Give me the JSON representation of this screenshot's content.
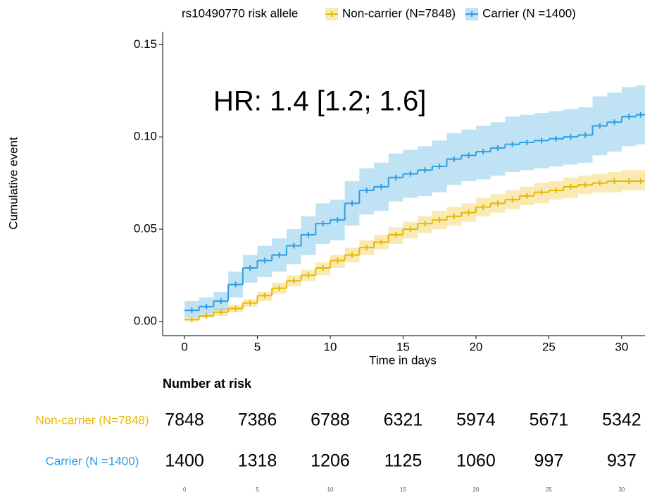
{
  "chart_data": {
    "type": "line",
    "annotation": "HR: 1.4 [1.2; 1.6]",
    "legend_title": "rs10490770 risk allele",
    "xlabel": "Time in days",
    "ylabel": "Cumulative event",
    "xlim": [
      -1.5,
      31.6
    ],
    "ylim": [
      -0.0077,
      0.157
    ],
    "xticks": [
      0,
      5,
      10,
      15,
      20,
      25,
      30
    ],
    "yticks": [
      {
        "value": 0,
        "label": "0.00"
      },
      {
        "value": 0.05,
        "label": "0.05"
      },
      {
        "value": 0.1,
        "label": "0.10"
      },
      {
        "value": 0.15,
        "label": "0.15"
      }
    ],
    "legend": "top",
    "x": [
      0,
      1,
      2,
      3,
      4,
      5,
      6,
      7,
      8,
      9,
      10,
      11,
      12,
      13,
      14,
      15,
      16,
      17,
      18,
      19,
      20,
      21,
      22,
      23,
      24,
      25,
      26,
      27,
      28,
      29,
      30,
      31
    ],
    "series": [
      {
        "name": "Non-carrier (N=7848)",
        "color": "#E7B800",
        "values": [
          0.001,
          0.003,
          0.005,
          0.007,
          0.01,
          0.014,
          0.018,
          0.022,
          0.025,
          0.029,
          0.033,
          0.036,
          0.04,
          0.043,
          0.047,
          0.05,
          0.053,
          0.055,
          0.057,
          0.059,
          0.062,
          0.064,
          0.066,
          0.068,
          0.07,
          0.071,
          0.073,
          0.074,
          0.075,
          0.076,
          0.076,
          0.076
        ],
        "lower": [
          0.0,
          0.002,
          0.003,
          0.005,
          0.008,
          0.011,
          0.015,
          0.019,
          0.022,
          0.025,
          0.029,
          0.032,
          0.036,
          0.039,
          0.042,
          0.045,
          0.048,
          0.05,
          0.052,
          0.054,
          0.057,
          0.059,
          0.061,
          0.063,
          0.064,
          0.066,
          0.067,
          0.069,
          0.07,
          0.07,
          0.071,
          0.071
        ],
        "upper": [
          0.002,
          0.004,
          0.007,
          0.009,
          0.012,
          0.016,
          0.021,
          0.025,
          0.028,
          0.032,
          0.036,
          0.04,
          0.044,
          0.047,
          0.051,
          0.054,
          0.057,
          0.06,
          0.062,
          0.064,
          0.067,
          0.069,
          0.071,
          0.073,
          0.075,
          0.076,
          0.078,
          0.079,
          0.08,
          0.081,
          0.082,
          0.082
        ]
      },
      {
        "name": "Carrier (N =1400)",
        "color": "#2E9FDF",
        "values": [
          0.006,
          0.008,
          0.011,
          0.02,
          0.029,
          0.033,
          0.036,
          0.041,
          0.047,
          0.053,
          0.055,
          0.064,
          0.071,
          0.073,
          0.078,
          0.08,
          0.082,
          0.084,
          0.088,
          0.09,
          0.092,
          0.094,
          0.096,
          0.097,
          0.098,
          0.099,
          0.1,
          0.101,
          0.106,
          0.108,
          0.111,
          0.112
        ],
        "lower": [
          0.002,
          0.004,
          0.006,
          0.013,
          0.021,
          0.024,
          0.027,
          0.031,
          0.036,
          0.042,
          0.044,
          0.052,
          0.058,
          0.06,
          0.065,
          0.067,
          0.068,
          0.07,
          0.074,
          0.076,
          0.077,
          0.079,
          0.081,
          0.082,
          0.083,
          0.084,
          0.085,
          0.086,
          0.09,
          0.092,
          0.095,
          0.096
        ],
        "upper": [
          0.011,
          0.013,
          0.016,
          0.027,
          0.036,
          0.041,
          0.045,
          0.05,
          0.057,
          0.064,
          0.066,
          0.076,
          0.083,
          0.086,
          0.091,
          0.093,
          0.095,
          0.098,
          0.102,
          0.104,
          0.106,
          0.108,
          0.111,
          0.112,
          0.113,
          0.114,
          0.115,
          0.116,
          0.122,
          0.124,
          0.127,
          0.128
        ]
      }
    ],
    "risk_table": {
      "title": "Number at risk",
      "times": [
        0,
        5,
        10,
        15,
        20,
        25,
        30
      ],
      "rows": [
        {
          "name": "Non-carrier (N=7848)",
          "color": "#E7B800",
          "values": [
            7848,
            7386,
            6788,
            6321,
            5974,
            5671,
            5342
          ]
        },
        {
          "name": "Carrier (N =1400)",
          "color": "#2E9FDF",
          "values": [
            1400,
            1318,
            1206,
            1125,
            1060,
            997,
            937
          ]
        }
      ]
    }
  }
}
